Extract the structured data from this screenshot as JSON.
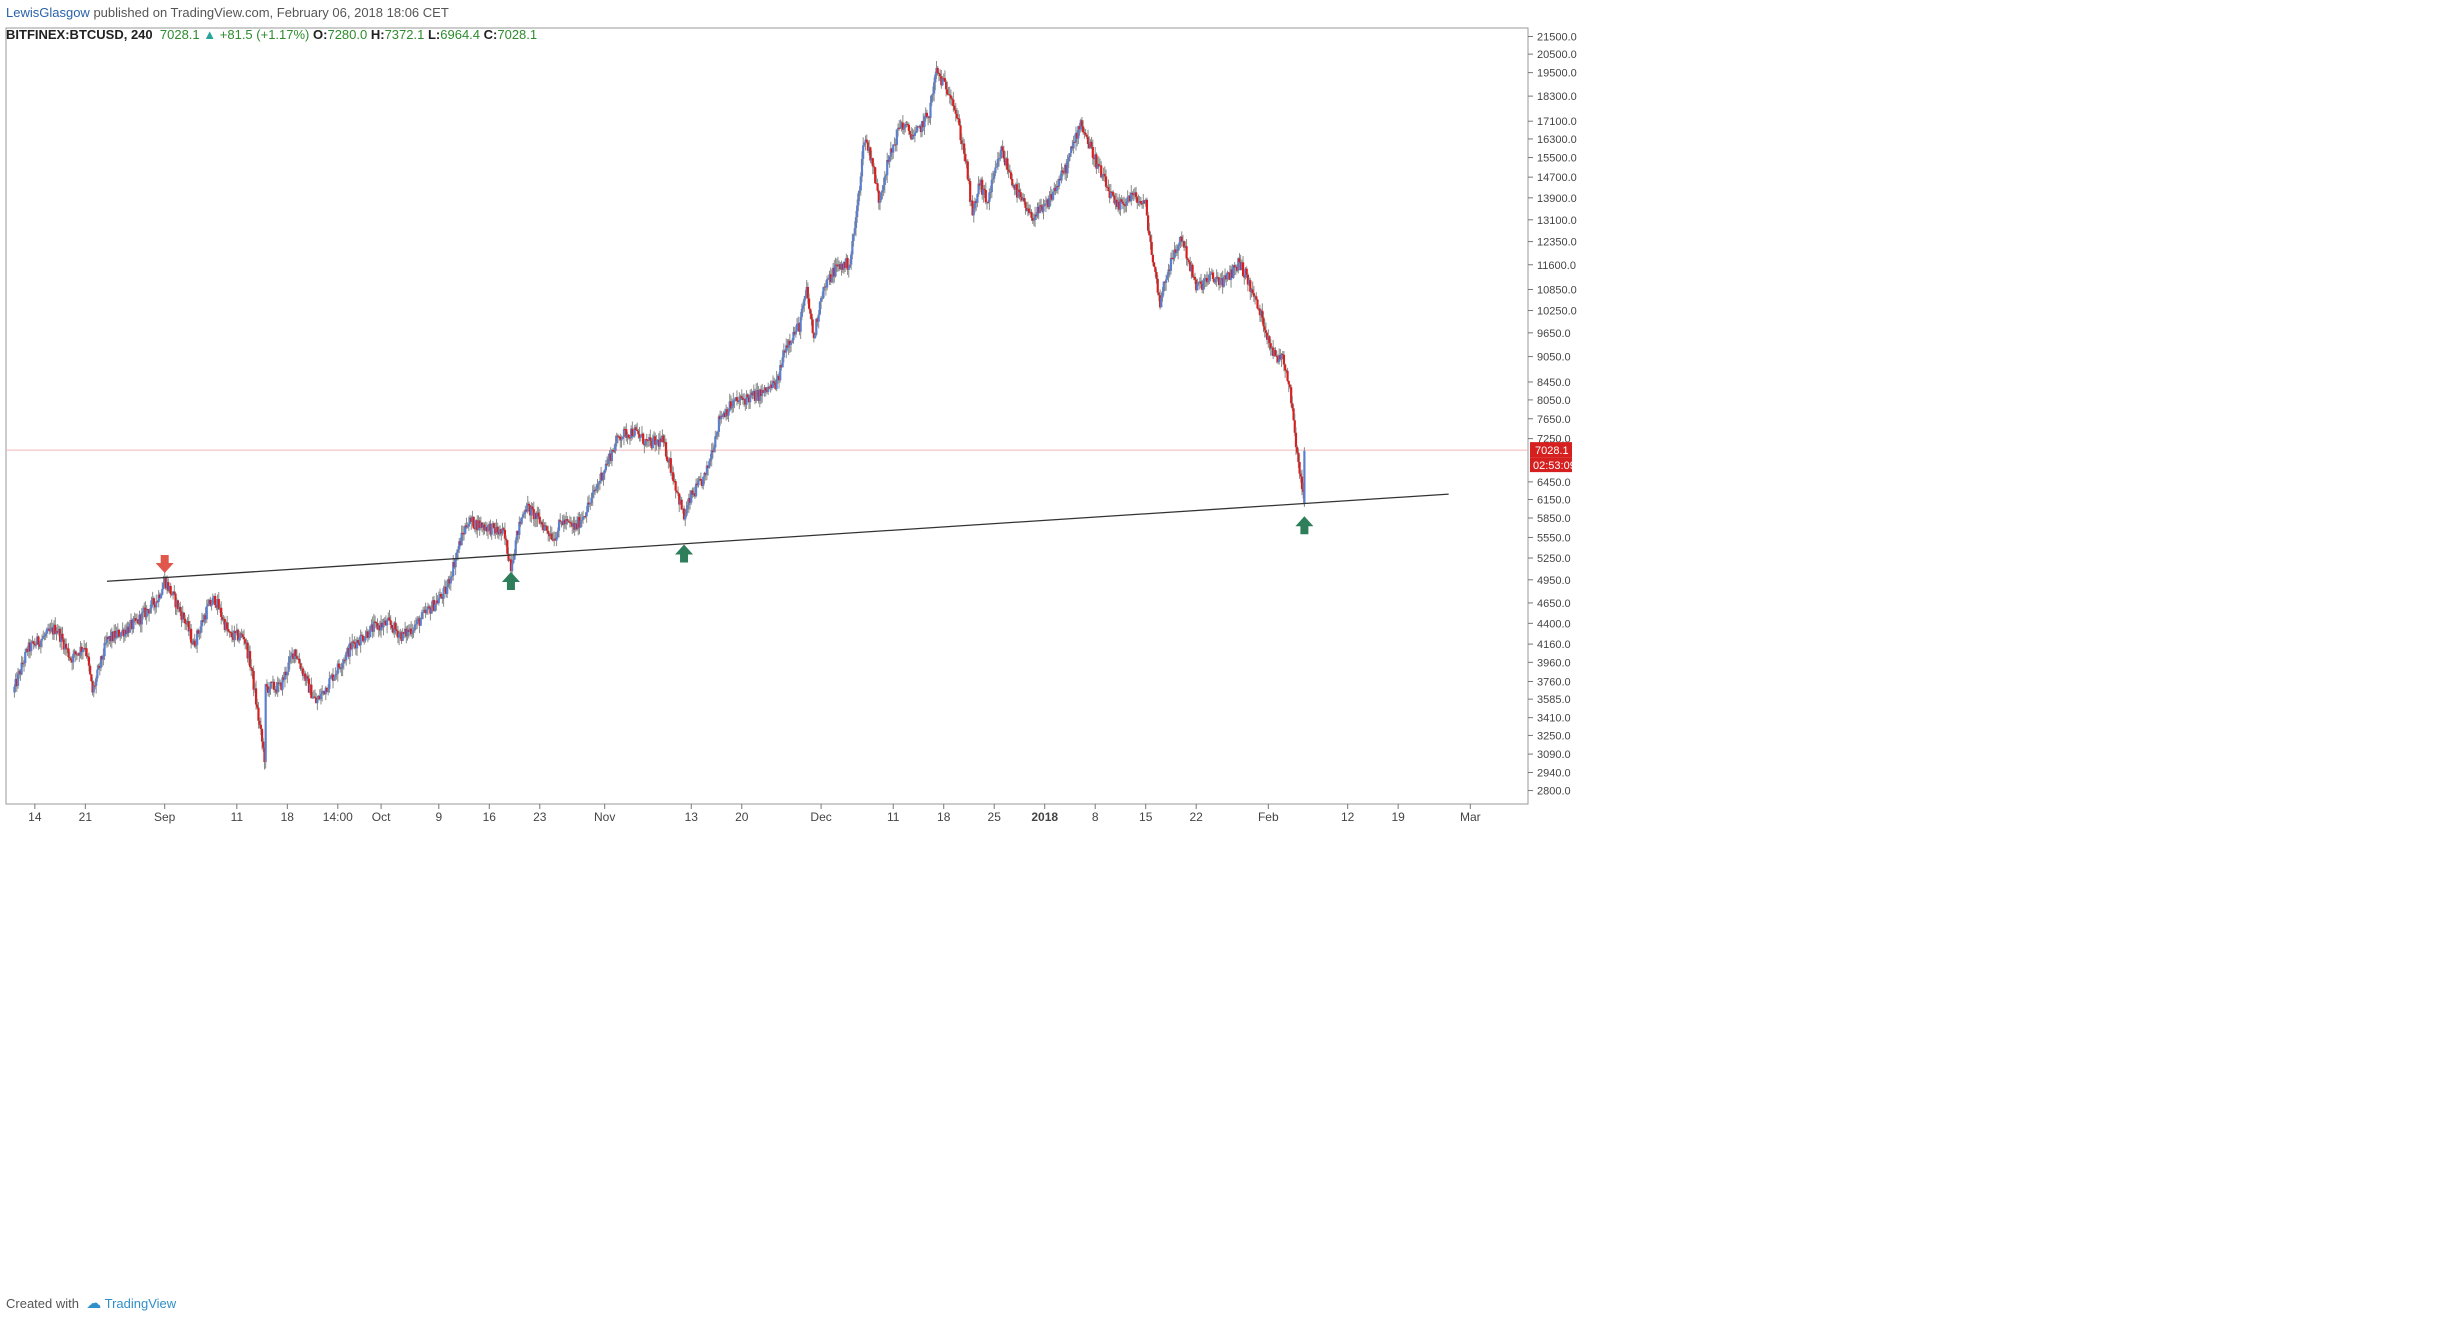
{
  "header": {
    "author": "LewisGlasgow",
    "published": "published on TradingView.com, February 06, 2018 18:06 CET",
    "symbol": "BITFINEX:BTCUSD, 240",
    "last": "7028.1",
    "change": "+81.5 (+1.17%)",
    "o_label": "O:",
    "o_value": "7280.0",
    "h_label": "H:",
    "h_value": "7372.1",
    "l_label": "L:",
    "l_value": "6964.4",
    "c_label": "C:",
    "c_value": "7028.1"
  },
  "footer": {
    "created_with": "Created with",
    "brand": "TradingView"
  },
  "colors": {
    "up": "#5b7fd0",
    "down": "#d62020",
    "trendline": "#333333",
    "arrow_up": "#2e7d5b",
    "arrow_down": "#e0574b",
    "price_line": "#f3b6b6",
    "badge": "#d62020"
  },
  "chart_data": {
    "type": "candlestick",
    "x_ticks": [
      {
        "label": "14",
        "date": "2017-08-14"
      },
      {
        "label": "21",
        "date": "2017-08-21"
      },
      {
        "label": "Sep",
        "date": "2017-09-01"
      },
      {
        "label": "11",
        "date": "2017-09-11"
      },
      {
        "label": "18",
        "date": "2017-09-18"
      },
      {
        "label": "14:00",
        "date": "2017-09-25"
      },
      {
        "label": "Oct",
        "date": "2017-10-01"
      },
      {
        "label": "9",
        "date": "2017-10-09"
      },
      {
        "label": "16",
        "date": "2017-10-16"
      },
      {
        "label": "23",
        "date": "2017-10-23"
      },
      {
        "label": "Nov",
        "date": "2017-11-01"
      },
      {
        "label": "13",
        "date": "2017-11-13"
      },
      {
        "label": "20",
        "date": "2017-11-20"
      },
      {
        "label": "Dec",
        "date": "2017-12-01"
      },
      {
        "label": "11",
        "date": "2017-12-11"
      },
      {
        "label": "18",
        "date": "2017-12-18"
      },
      {
        "label": "25",
        "date": "2017-12-25"
      },
      {
        "label": "2018",
        "date": "2018-01-01"
      },
      {
        "label": "8",
        "date": "2018-01-08"
      },
      {
        "label": "15",
        "date": "2018-01-15"
      },
      {
        "label": "22",
        "date": "2018-01-22"
      },
      {
        "label": "Feb",
        "date": "2018-02-01"
      },
      {
        "label": "12",
        "date": "2018-02-12"
      },
      {
        "label": "19",
        "date": "2018-02-19"
      },
      {
        "label": "Mar",
        "date": "2018-03-01"
      }
    ],
    "y_ticks": [
      21500.0,
      20500.0,
      19500.0,
      18300.0,
      17100.0,
      16300.0,
      15500.0,
      14700.0,
      13900.0,
      13100.0,
      12350.0,
      11600.0,
      10850.0,
      10250.0,
      9650.0,
      9050.0,
      8450.0,
      8050.0,
      7650.0,
      7250.0,
      6450.0,
      6150.0,
      5850.0,
      5550.0,
      5250.0,
      4950.0,
      4650.0,
      4400.0,
      4160.0,
      3960.0,
      3760.0,
      3585.0,
      3410.0,
      3250.0,
      3090.0,
      2940.0,
      2800.0
    ],
    "y_scale": "log",
    "ylim": [
      2700,
      22000
    ],
    "price_points": [
      [
        "2017-08-11",
        3650
      ],
      [
        "2017-08-13",
        4100
      ],
      [
        "2017-08-17",
        4350
      ],
      [
        "2017-08-19",
        4000
      ],
      [
        "2017-08-21",
        4150
      ],
      [
        "2017-08-22",
        3650
      ],
      [
        "2017-08-24",
        4200
      ],
      [
        "2017-08-28",
        4400
      ],
      [
        "2017-08-31",
        4700
      ],
      [
        "2017-09-01",
        4950
      ],
      [
        "2017-09-04",
        4400
      ],
      [
        "2017-09-05",
        4150
      ],
      [
        "2017-09-07",
        4600
      ],
      [
        "2017-09-08",
        4700
      ],
      [
        "2017-09-10",
        4250
      ],
      [
        "2017-09-12",
        4250
      ],
      [
        "2017-09-13",
        3900
      ],
      [
        "2017-09-14",
        3400
      ],
      [
        "2017-09-15",
        3000
      ],
      [
        "2017-09-15",
        3700
      ],
      [
        "2017-09-17",
        3700
      ],
      [
        "2017-09-19",
        4100
      ],
      [
        "2017-09-21",
        3700
      ],
      [
        "2017-09-22",
        3550
      ],
      [
        "2017-09-25",
        3900
      ],
      [
        "2017-09-27",
        4150
      ],
      [
        "2017-09-30",
        4350
      ],
      [
        "2017-10-02",
        4400
      ],
      [
        "2017-10-04",
        4250
      ],
      [
        "2017-10-06",
        4400
      ],
      [
        "2017-10-08",
        4600
      ],
      [
        "2017-10-10",
        4800
      ],
      [
        "2017-10-12",
        5500
      ],
      [
        "2017-10-13",
        5800
      ],
      [
        "2017-10-16",
        5700
      ],
      [
        "2017-10-18",
        5600
      ],
      [
        "2017-10-19",
        5150
      ],
      [
        "2017-10-20",
        5650
      ],
      [
        "2017-10-21",
        6050
      ],
      [
        "2017-10-23",
        5800
      ],
      [
        "2017-10-25",
        5550
      ],
      [
        "2017-10-26",
        5800
      ],
      [
        "2017-10-28",
        5700
      ],
      [
        "2017-10-30",
        6100
      ],
      [
        "2017-11-01",
        6700
      ],
      [
        "2017-11-03",
        7300
      ],
      [
        "2017-11-05",
        7400
      ],
      [
        "2017-11-07",
        7150
      ],
      [
        "2017-11-09",
        7200
      ],
      [
        "2017-11-10",
        6800
      ],
      [
        "2017-11-12",
        5850
      ],
      [
        "2017-11-13",
        6200
      ],
      [
        "2017-11-15",
        6550
      ],
      [
        "2017-11-17",
        7700
      ],
      [
        "2017-11-19",
        8000
      ],
      [
        "2017-11-21",
        8100
      ],
      [
        "2017-11-23",
        8200
      ],
      [
        "2017-11-25",
        8450
      ],
      [
        "2017-11-26",
        9300
      ],
      [
        "2017-11-28",
        9850
      ],
      [
        "2017-11-29",
        10800
      ],
      [
        "2017-11-30",
        9500
      ],
      [
        "2017-12-01",
        10700
      ],
      [
        "2017-12-03",
        11500
      ],
      [
        "2017-12-05",
        11650
      ],
      [
        "2017-12-06",
        13500
      ],
      [
        "2017-12-07",
        16400
      ],
      [
        "2017-12-08",
        15500
      ],
      [
        "2017-12-09",
        13800
      ],
      [
        "2017-12-10",
        15000
      ],
      [
        "2017-12-12",
        17000
      ],
      [
        "2017-12-14",
        16400
      ],
      [
        "2017-12-16",
        17500
      ],
      [
        "2017-12-17",
        19600
      ],
      [
        "2017-12-18",
        18900
      ],
      [
        "2017-12-19",
        18500
      ],
      [
        "2017-12-20",
        17000
      ],
      [
        "2017-12-21",
        15500
      ],
      [
        "2017-12-22",
        13200
      ],
      [
        "2017-12-23",
        14500
      ],
      [
        "2017-12-24",
        13700
      ],
      [
        "2017-12-26",
        15800
      ],
      [
        "2017-12-28",
        14200
      ],
      [
        "2017-12-30",
        13200
      ],
      [
        "2018-01-01",
        13500
      ],
      [
        "2018-01-04",
        15100
      ],
      [
        "2018-01-06",
        17100
      ],
      [
        "2018-01-07",
        16200
      ],
      [
        "2018-01-09",
        14700
      ],
      [
        "2018-01-11",
        13500
      ],
      [
        "2018-01-13",
        14000
      ],
      [
        "2018-01-15",
        13600
      ],
      [
        "2018-01-16",
        11700
      ],
      [
        "2018-01-17",
        10500
      ],
      [
        "2018-01-18",
        11400
      ],
      [
        "2018-01-20",
        12500
      ],
      [
        "2018-01-22",
        10900
      ],
      [
        "2018-01-24",
        11200
      ],
      [
        "2018-01-26",
        11100
      ],
      [
        "2018-01-28",
        11700
      ],
      [
        "2018-01-29",
        11200
      ],
      [
        "2018-01-31",
        10100
      ],
      [
        "2018-02-02",
        9000
      ],
      [
        "2018-02-03",
        9100
      ],
      [
        "2018-02-04",
        8300
      ],
      [
        "2018-02-05",
        7000
      ],
      [
        "2018-02-06",
        6050
      ],
      [
        "2018-02-06",
        7028
      ]
    ],
    "trendline": {
      "start": [
        "2017-08-24",
        4930
      ],
      "end": [
        "2018-02-26",
        6240
      ]
    },
    "last_price": 7028.1,
    "last_price_label": "7028.1",
    "countdown_label": "02:53:09",
    "markers": [
      {
        "type": "down",
        "date": "2017-09-01",
        "price": 5180
      },
      {
        "type": "up",
        "date": "2017-10-19",
        "price": 4920
      },
      {
        "type": "up",
        "date": "2017-11-12",
        "price": 5300
      },
      {
        "type": "up",
        "date": "2018-02-06",
        "price": 5720
      }
    ]
  }
}
